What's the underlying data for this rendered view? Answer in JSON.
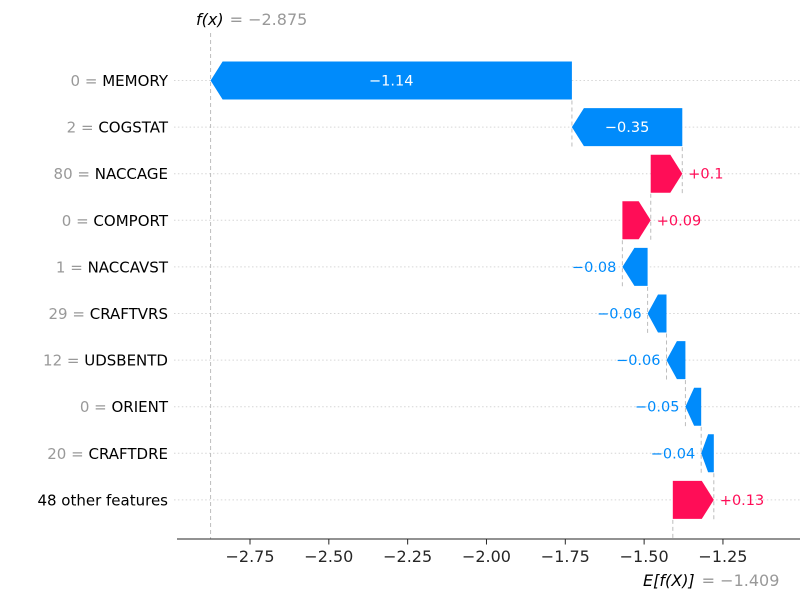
{
  "chart_data": {
    "type": "bar",
    "subtype": "shap_waterfall",
    "title": "f(x) = −2.875",
    "fx": {
      "label": "f(x)",
      "equals_text": "= −2.875",
      "value": -2.875
    },
    "expected_value": {
      "label": "E[f(X)]",
      "equals_text": "= −1.409",
      "value": -1.409
    },
    "xlabel": "",
    "ylabel": "",
    "xlim": [
      -2.98,
      -1.0
    ],
    "grid": "dotted-horizontal-rows",
    "legend": null,
    "x_ticks": [
      {
        "value": -2.75,
        "label": "−2.75"
      },
      {
        "value": -2.5,
        "label": "−2.50"
      },
      {
        "value": -2.25,
        "label": "−2.25"
      },
      {
        "value": -2.0,
        "label": "−2.00"
      },
      {
        "value": -1.75,
        "label": "−1.75"
      },
      {
        "value": -1.5,
        "label": "−1.50"
      },
      {
        "value": -1.25,
        "label": "−1.25"
      }
    ],
    "features": [
      {
        "data_value": "0",
        "name": "MEMORY",
        "shap": -1.14,
        "bar_label": "−1.14",
        "label_position": "inside"
      },
      {
        "data_value": "2",
        "name": "COGSTAT",
        "shap": -0.35,
        "bar_label": "−0.35",
        "label_position": "inside"
      },
      {
        "data_value": "80",
        "name": "NACCAGE",
        "shap": 0.1,
        "bar_label": "+0.1",
        "label_position": "outside"
      },
      {
        "data_value": "0",
        "name": "COMPORT",
        "shap": 0.09,
        "bar_label": "+0.09",
        "label_position": "outside"
      },
      {
        "data_value": "1",
        "name": "NACCAVST",
        "shap": -0.08,
        "bar_label": "−0.08",
        "label_position": "outside"
      },
      {
        "data_value": "29",
        "name": "CRAFTVRS",
        "shap": -0.06,
        "bar_label": "−0.06",
        "label_position": "outside"
      },
      {
        "data_value": "12",
        "name": "UDSBENTD",
        "shap": -0.06,
        "bar_label": "−0.06",
        "label_position": "outside"
      },
      {
        "data_value": "0",
        "name": "ORIENT",
        "shap": -0.05,
        "bar_label": "−0.05",
        "label_position": "outside"
      },
      {
        "data_value": "20",
        "name": "CRAFTDRE",
        "shap": -0.04,
        "bar_label": "−0.04",
        "label_position": "outside"
      },
      {
        "data_value": null,
        "name": "48 other features",
        "shap": 0.13,
        "bar_label": "+0.13",
        "label_position": "outside"
      }
    ],
    "colors": {
      "positive": "#ff0d57",
      "negative": "#008bfb",
      "bar_label_inside": "#ffffff",
      "muted_text": "#999999",
      "feature_text": "#000000",
      "axis_text": "#262626",
      "axis_line": "#262626",
      "gridline": "#d6d6d6",
      "connector": "#bdbdbd",
      "background": "#ffffff"
    }
  }
}
